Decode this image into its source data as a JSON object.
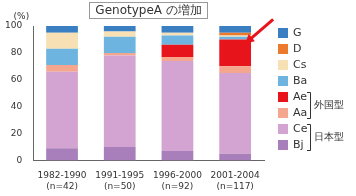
{
  "chart_data": {
    "type": "bar",
    "title": "GenotypeA の増加",
    "ylabel": "(%)",
    "categories": [
      [
        "1982-1990",
        "(n=42)"
      ],
      [
        "1991-1995",
        "(n=50)"
      ],
      [
        "1996-2000",
        "(n=92)"
      ],
      [
        "2001-2004",
        "(n=117)"
      ]
    ],
    "series": [
      {
        "name": "Bj",
        "color": "#a87fba",
        "values": [
          9,
          10,
          7,
          5
        ]
      },
      {
        "name": "Ce",
        "color": "#d3a3d1",
        "values": [
          57,
          68,
          67,
          60
        ]
      },
      {
        "name": "Aa",
        "color": "#f4a78e",
        "values": [
          5,
          2,
          3,
          5
        ]
      },
      {
        "name": "Ae",
        "color": "#e8141c",
        "values": [
          0,
          0,
          9,
          20
        ]
      },
      {
        "name": "Ba",
        "color": "#6db4e0",
        "values": [
          12,
          12,
          7,
          2
        ]
      },
      {
        "name": "Cs",
        "color": "#f6e0b4",
        "values": [
          12,
          4,
          2,
          1
        ]
      },
      {
        "name": "D",
        "color": "#ec7a2e",
        "values": [
          0,
          0,
          0,
          2
        ]
      },
      {
        "name": "G",
        "color": "#3a7fc1",
        "values": [
          5,
          4,
          5,
          5
        ]
      }
    ],
    "stacked": true,
    "ylim": [
      0,
      100
    ],
    "yticks": [
      0,
      20,
      40,
      60,
      80,
      100
    ],
    "grid": false,
    "legend": "right",
    "annotations": [
      {
        "text": "外国型",
        "series": [
          "Ae",
          "Aa"
        ]
      },
      {
        "text": "日本型",
        "series": [
          "Ce",
          "Bj"
        ]
      }
    ]
  }
}
